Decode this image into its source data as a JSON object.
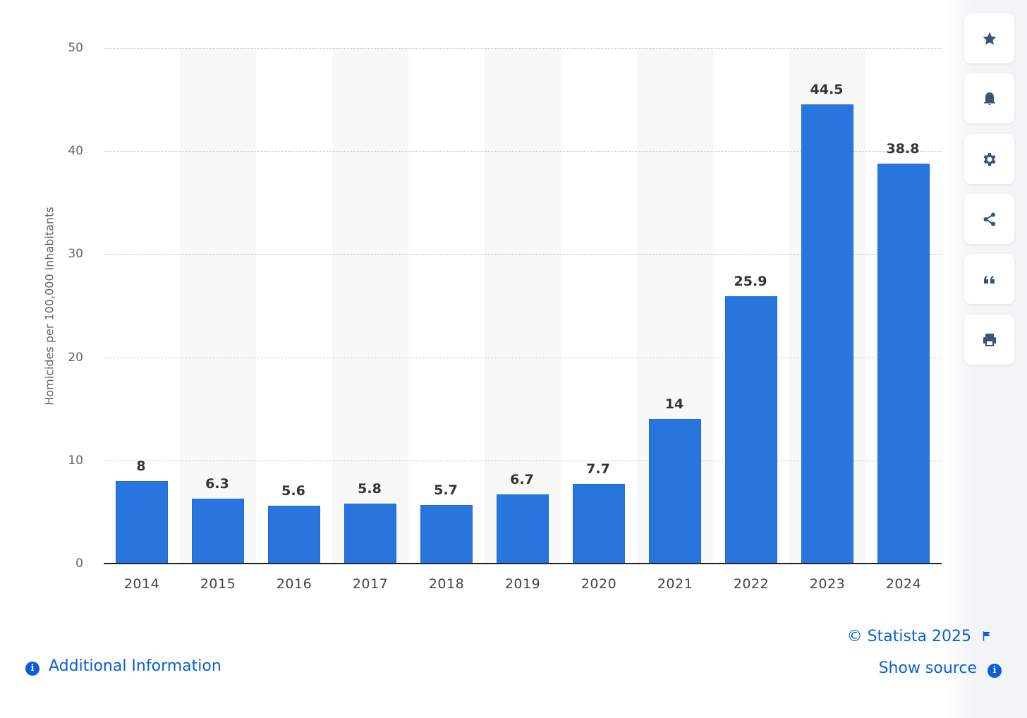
{
  "chart_data": {
    "type": "bar",
    "title": "",
    "xlabel": "",
    "ylabel": "Homicides per 100,000 inhabitants",
    "categories": [
      "2014",
      "2015",
      "2016",
      "2017",
      "2018",
      "2019",
      "2020",
      "2021",
      "2022",
      "2023",
      "2024"
    ],
    "values": [
      8,
      6.3,
      5.6,
      5.8,
      5.7,
      6.7,
      7.7,
      14,
      25.9,
      44.5,
      38.8
    ],
    "value_labels": [
      "8",
      "6.3",
      "5.6",
      "5.8",
      "5.7",
      "6.7",
      "7.7",
      "14",
      "25.9",
      "44.5",
      "38.8"
    ],
    "ylim": [
      0,
      50
    ],
    "yticks": [
      "0",
      "10",
      "20",
      "30",
      "40",
      "50"
    ],
    "grid": true,
    "bar_color": "#2876dd",
    "legend": null
  },
  "toolbar": {
    "items": [
      {
        "name": "favorite",
        "icon": "star-icon"
      },
      {
        "name": "notification",
        "icon": "bell-icon"
      },
      {
        "name": "settings",
        "icon": "gear-icon"
      },
      {
        "name": "share",
        "icon": "share-icon"
      },
      {
        "name": "cite",
        "icon": "quote-icon"
      },
      {
        "name": "print",
        "icon": "printer-icon"
      }
    ]
  },
  "footer": {
    "additional_info": "Additional Information",
    "copyright": "© Statista 2025",
    "show_source": "Show source",
    "link_color": "#0a5fd8"
  }
}
